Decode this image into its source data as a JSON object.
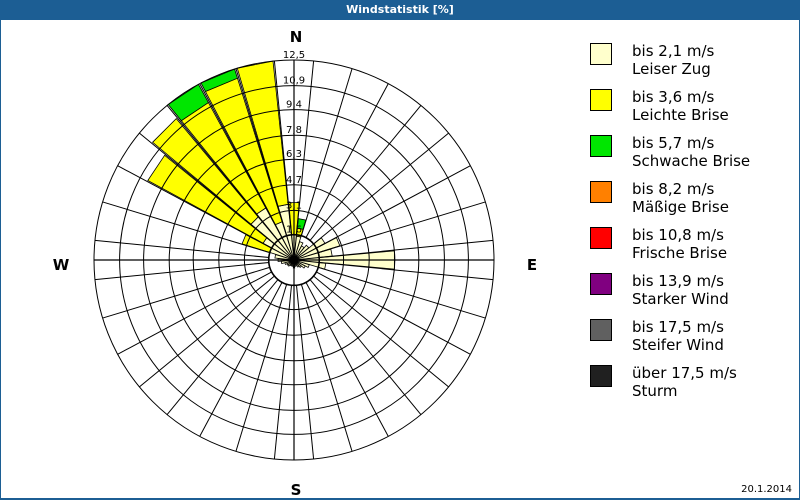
{
  "header": {
    "title": "Windstatistik [%]"
  },
  "footer": {
    "date": "20.1.2014"
  },
  "compass": {
    "n": "N",
    "e": "E",
    "s": "S",
    "w": "W"
  },
  "legend": [
    {
      "range": "bis 2,1 m/s",
      "name": "Leiser Zug",
      "color": "#ffffcc"
    },
    {
      "range": "bis 3,6 m/s",
      "name": "Leichte Brise",
      "color": "#ffff00"
    },
    {
      "range": "bis 5,7 m/s",
      "name": "Schwache Brise",
      "color": "#00e600"
    },
    {
      "range": "bis 8,2 m/s",
      "name": "Mäßige Brise",
      "color": "#ff8000"
    },
    {
      "range": "bis 10,8 m/s",
      "name": "Frische Brise",
      "color": "#ff0000"
    },
    {
      "range": "bis 13,9 m/s",
      "name": "Starker Wind",
      "color": "#800080"
    },
    {
      "range": "bis 17,5 m/s",
      "name": "Steifer Wind",
      "color": "#606060"
    },
    {
      "range": "über 17,5 m/s",
      "name": "Sturm",
      "color": "#202020"
    }
  ],
  "chart_data": {
    "type": "wind-rose",
    "title": "Windstatistik [%]",
    "unit": "%",
    "rlim": [
      0,
      12.5
    ],
    "ring_labels": [
      "1,6",
      "3,1",
      "4,7",
      "6,3",
      "7,8",
      "9,4",
      "10,9",
      "12,5"
    ],
    "ring_values": [
      1.6,
      3.1,
      4.7,
      6.3,
      7.8,
      9.4,
      10.9,
      12.5
    ],
    "sector_width_deg": 11.25,
    "series_names": [
      "Leiser Zug",
      "Leichte Brise",
      "Schwache Brise",
      "Mäßige Brise",
      "Frische Brise",
      "Starker Wind",
      "Steifer Wind",
      "Sturm"
    ],
    "directions_deg": [
      0,
      11.25,
      22.5,
      33.75,
      45,
      56.25,
      67.5,
      78.75,
      90,
      101.25,
      112.5,
      123.75,
      135,
      146.25,
      157.5,
      168.75,
      180,
      191.25,
      202.5,
      213.75,
      225,
      236.25,
      247.5,
      258.75,
      270,
      281.25,
      292.5,
      303.75,
      315,
      326.25,
      337.5,
      348.75
    ],
    "values": [
      [
        1.6,
        2.0,
        0.0
      ],
      [
        1.5,
        0.5,
        0.6
      ],
      [
        1.2,
        0.0,
        0.0
      ],
      [
        1.0,
        0.0,
        0.0
      ],
      [
        1.2,
        0.0,
        0.0
      ],
      [
        2.2,
        0.0,
        0.0
      ],
      [
        3.0,
        0.0,
        0.0
      ],
      [
        2.4,
        0.0,
        0.0
      ],
      [
        6.3,
        0.0,
        0.0
      ],
      [
        2.0,
        0.0,
        0.0
      ],
      [
        1.0,
        0.0,
        0.0
      ],
      [
        0.8,
        0.0,
        0.0
      ],
      [
        0.6,
        0.0,
        0.0
      ],
      [
        0.5,
        0.0,
        0.0
      ],
      [
        0.4,
        0.0,
        0.0
      ],
      [
        0.4,
        0.0,
        0.0
      ],
      [
        0.5,
        0.0,
        0.0
      ],
      [
        0.4,
        0.0,
        0.0
      ],
      [
        0.4,
        0.0,
        0.0
      ],
      [
        0.4,
        0.0,
        0.0
      ],
      [
        0.5,
        0.0,
        0.0
      ],
      [
        0.5,
        0.0,
        0.0
      ],
      [
        0.6,
        0.0,
        0.0
      ],
      [
        0.8,
        0.0,
        0.0
      ],
      [
        1.0,
        0.0,
        0.0
      ],
      [
        1.2,
        0.0,
        0.0
      ],
      [
        1.6,
        1.8,
        0.0
      ],
      [
        2.2,
        8.2,
        0.0
      ],
      [
        3.5,
        8.0,
        0.0
      ],
      [
        3.7,
        7.5,
        1.3
      ],
      [
        2.5,
        9.4,
        0.6
      ],
      [
        3.5,
        9.0,
        0.0
      ]
    ]
  }
}
